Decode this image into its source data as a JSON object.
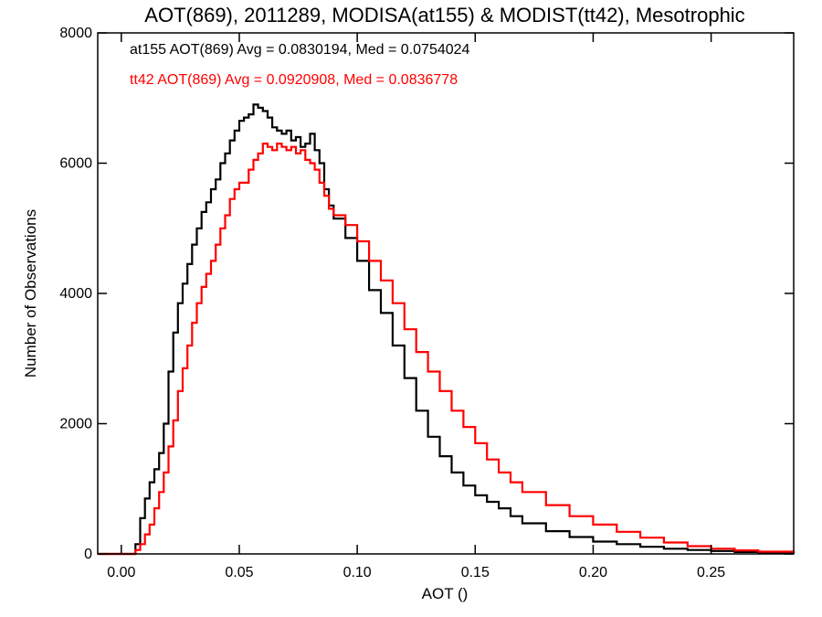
{
  "chart_data": {
    "type": "line",
    "title": "AOT(869), 2011289, MODISA(at155) & MODIST(tt42), Mesotrophic",
    "xlabel": "AOT ()",
    "ylabel": "Number of Observations",
    "xlim": [
      -0.01,
      0.285
    ],
    "ylim": [
      0,
      8000
    ],
    "xticks": [
      0.0,
      0.05,
      0.1,
      0.15,
      0.2,
      0.25
    ],
    "xtick_labels": [
      "0.00",
      "0.05",
      "0.10",
      "0.15",
      "0.20",
      "0.25"
    ],
    "yticks": [
      0,
      2000,
      4000,
      6000,
      8000
    ],
    "ytick_labels": [
      "0",
      "2000",
      "4000",
      "6000",
      "8000"
    ],
    "step": true,
    "grid": false,
    "legend_placement": "top-left",
    "series": [
      {
        "name": "at155",
        "legend": "at155 AOT(869) Avg = 0.0830194, Med = 0.0754024",
        "color": "#000000",
        "x": [
          -0.01,
          0.004,
          0.006,
          0.008,
          0.01,
          0.012,
          0.014,
          0.016,
          0.018,
          0.02,
          0.022,
          0.024,
          0.026,
          0.028,
          0.03,
          0.032,
          0.034,
          0.036,
          0.038,
          0.04,
          0.042,
          0.044,
          0.046,
          0.048,
          0.05,
          0.052,
          0.054,
          0.056,
          0.058,
          0.06,
          0.062,
          0.064,
          0.066,
          0.068,
          0.07,
          0.072,
          0.074,
          0.076,
          0.078,
          0.08,
          0.082,
          0.084,
          0.086,
          0.088,
          0.09,
          0.095,
          0.1,
          0.105,
          0.11,
          0.115,
          0.12,
          0.125,
          0.13,
          0.135,
          0.14,
          0.145,
          0.15,
          0.155,
          0.16,
          0.165,
          0.17,
          0.18,
          0.19,
          0.2,
          0.21,
          0.22,
          0.23,
          0.24,
          0.25,
          0.26,
          0.27,
          0.285
        ],
        "y": [
          0,
          0,
          150,
          550,
          850,
          1100,
          1300,
          1550,
          2000,
          2800,
          3400,
          3850,
          4150,
          4450,
          4750,
          5000,
          5250,
          5400,
          5600,
          5750,
          6000,
          6150,
          6350,
          6500,
          6650,
          6700,
          6750,
          6900,
          6850,
          6800,
          6700,
          6550,
          6500,
          6450,
          6500,
          6350,
          6400,
          6250,
          6300,
          6450,
          6200,
          6000,
          5600,
          5350,
          5150,
          4850,
          4500,
          4050,
          3700,
          3200,
          2700,
          2200,
          1800,
          1500,
          1250,
          1050,
          900,
          800,
          700,
          580,
          470,
          350,
          260,
          190,
          150,
          110,
          80,
          60,
          45,
          30,
          20,
          10
        ]
      },
      {
        "name": "tt42",
        "legend": "tt42 AOT(869) Avg = 0.0920908, Med = 0.0836778",
        "color": "#ff0000",
        "x": [
          -0.01,
          0.004,
          0.006,
          0.008,
          0.01,
          0.012,
          0.014,
          0.016,
          0.018,
          0.02,
          0.022,
          0.024,
          0.026,
          0.028,
          0.03,
          0.032,
          0.034,
          0.036,
          0.038,
          0.04,
          0.042,
          0.044,
          0.046,
          0.048,
          0.05,
          0.052,
          0.054,
          0.056,
          0.058,
          0.06,
          0.062,
          0.064,
          0.066,
          0.068,
          0.07,
          0.072,
          0.074,
          0.076,
          0.078,
          0.08,
          0.082,
          0.084,
          0.086,
          0.088,
          0.09,
          0.095,
          0.1,
          0.105,
          0.11,
          0.115,
          0.12,
          0.125,
          0.13,
          0.135,
          0.14,
          0.145,
          0.15,
          0.155,
          0.16,
          0.165,
          0.17,
          0.18,
          0.19,
          0.2,
          0.21,
          0.22,
          0.23,
          0.24,
          0.25,
          0.26,
          0.27,
          0.285
        ],
        "y": [
          0,
          0,
          60,
          150,
          300,
          450,
          700,
          950,
          1250,
          1650,
          2050,
          2500,
          2850,
          3200,
          3550,
          3850,
          4100,
          4300,
          4500,
          4750,
          5000,
          5200,
          5450,
          5600,
          5700,
          5700,
          5900,
          6050,
          6150,
          6300,
          6250,
          6200,
          6300,
          6250,
          6200,
          6250,
          6150,
          6200,
          6050,
          6000,
          5900,
          5700,
          5500,
          5300,
          5200,
          5050,
          4800,
          4500,
          4200,
          3850,
          3450,
          3100,
          2800,
          2500,
          2200,
          1950,
          1700,
          1450,
          1250,
          1100,
          950,
          750,
          580,
          450,
          340,
          250,
          175,
          120,
          80,
          55,
          35,
          15
        ]
      }
    ]
  }
}
